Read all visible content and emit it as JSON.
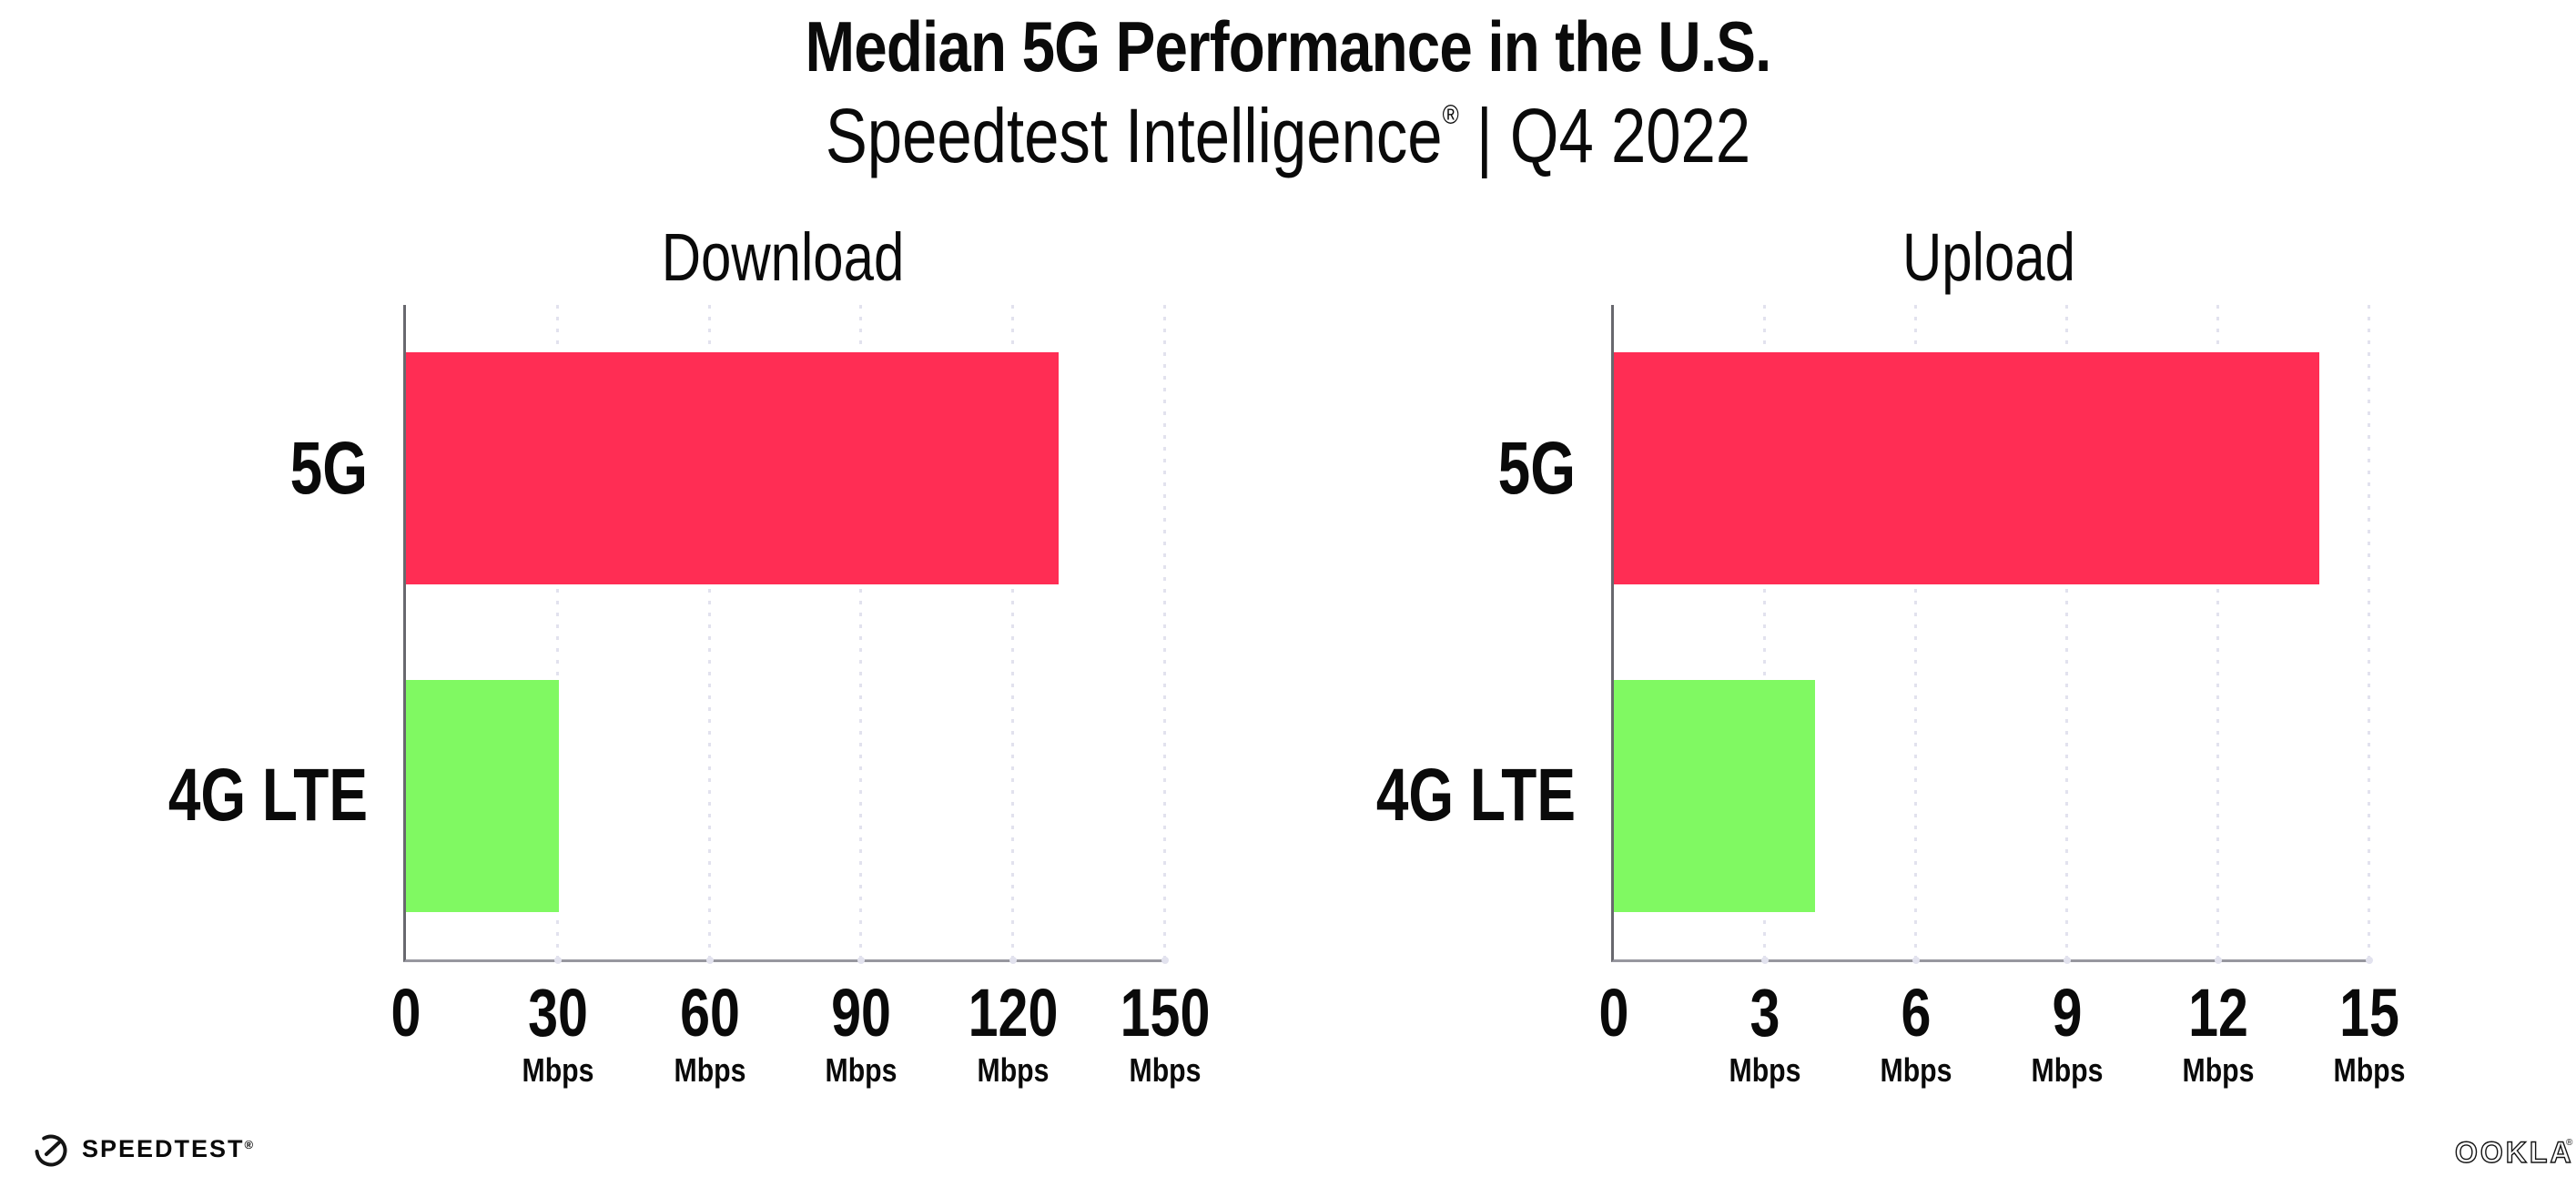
{
  "header": {
    "title": "Median 5G Performance in the U.S.",
    "subtitle_brand": "Speedtest Intelligence",
    "subtitle_reg": "®",
    "subtitle_rest": " | Q4 2022"
  },
  "footer": {
    "speedtest_label": "SPEEDTEST",
    "speedtest_mark": "®",
    "ookla_label": "OOKLA",
    "ookla_mark": "®"
  },
  "colors": {
    "bar_5g": "#ff2d54",
    "bar_4g": "#80f962",
    "gridline": "#e2e2ee",
    "axis_x": "#97979f",
    "axis_y": "#68686e",
    "text": "#0a0a0a"
  },
  "chart_data": [
    {
      "type": "bar",
      "orientation": "horizontal",
      "title": "Download",
      "categories": [
        "5G",
        "4G LTE"
      ],
      "values": [
        129,
        30.3
      ],
      "unit": "Mbps",
      "xlabel": "",
      "ylabel": "",
      "xlim": [
        0,
        150
      ],
      "xticks": [
        0,
        30,
        60,
        90,
        120,
        150
      ],
      "grid": "dotted-vertical",
      "legend": "none",
      "bar_colors": [
        "#ff2d54",
        "#80f962"
      ]
    },
    {
      "type": "bar",
      "orientation": "horizontal",
      "title": "Upload",
      "categories": [
        "5G",
        "4G LTE"
      ],
      "values": [
        14,
        4
      ],
      "unit": "Mbps",
      "xlabel": "",
      "ylabel": "",
      "xlim": [
        0,
        15
      ],
      "xticks": [
        0,
        3,
        6,
        9,
        12,
        15
      ],
      "grid": "dotted-vertical",
      "legend": "none",
      "bar_colors": [
        "#ff2d54",
        "#80f962"
      ]
    }
  ]
}
